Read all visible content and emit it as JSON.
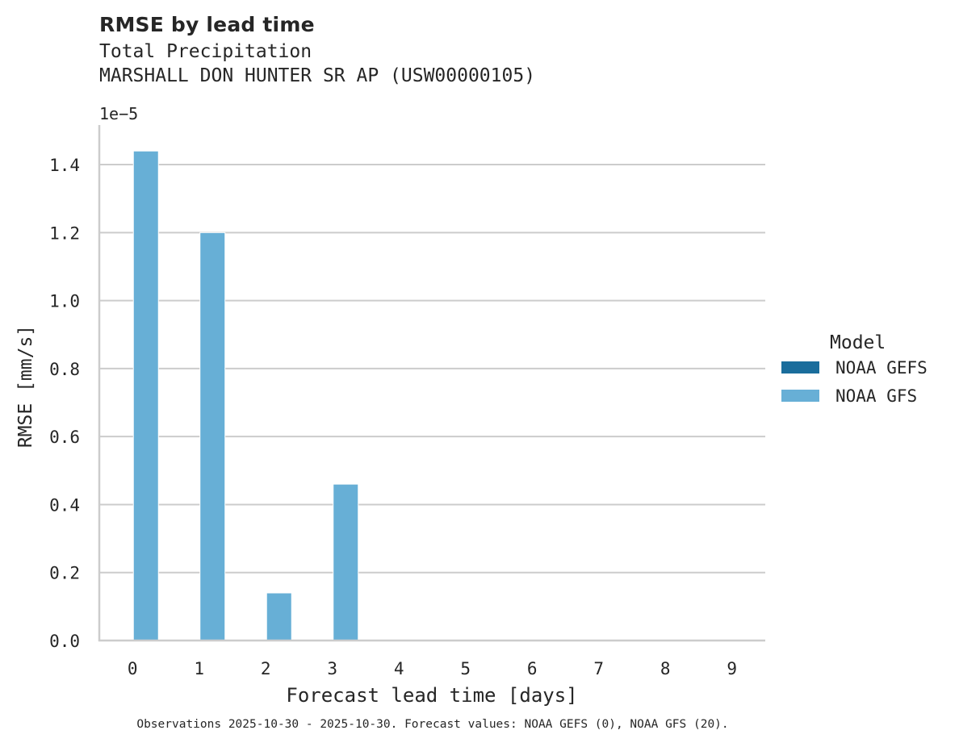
{
  "header": {
    "title": "RMSE by lead time",
    "subtitle_line1": "Total Precipitation",
    "subtitle_line2": "MARSHALL DON HUNTER SR AP (USW00000105)"
  },
  "axes": {
    "y_exponent": "1e−5",
    "ylabel": "RMSE [mm/s]",
    "xlabel": "Forecast lead time [days]"
  },
  "legend": {
    "title": "Model",
    "items": [
      {
        "label": "NOAA GEFS",
        "color": "#1a6d9c"
      },
      {
        "label": "NOAA GFS",
        "color": "#67afd6"
      }
    ]
  },
  "footnote": "Observations 2025-10-30 - 2025-10-30. Forecast values: NOAA GEFS (0), NOAA GFS (20).",
  "colors": {
    "grid": "#cccccc",
    "spine": "#cccccc",
    "gefs": "#1a6d9c",
    "gfs": "#67afd6"
  },
  "chart_data": {
    "type": "bar",
    "title": "RMSE by lead time",
    "subtitle": "Total Precipitation — MARSHALL DON HUNTER SR AP (USW00000105)",
    "xlabel": "Forecast lead time [days]",
    "ylabel": "RMSE [mm/s]",
    "y_scale_factor": 1e-05,
    "categories": [
      "0",
      "1",
      "2",
      "3",
      "4",
      "5",
      "6",
      "7",
      "8",
      "9"
    ],
    "series": [
      {
        "name": "NOAA GEFS",
        "color": "#1a6d9c",
        "values": [
          0,
          0,
          0,
          0,
          0,
          0,
          0,
          0,
          0,
          0
        ]
      },
      {
        "name": "NOAA GFS",
        "color": "#67afd6",
        "values": [
          1.44,
          1.2,
          0.14,
          0.46,
          0,
          0,
          0,
          0,
          0,
          0
        ]
      }
    ],
    "yticks": [
      "0.0",
      "0.2",
      "0.4",
      "0.6",
      "0.8",
      "1.0",
      "1.2",
      "1.4"
    ],
    "ylim": [
      0,
      1.51
    ],
    "grid": "y",
    "legend_position": "right"
  }
}
